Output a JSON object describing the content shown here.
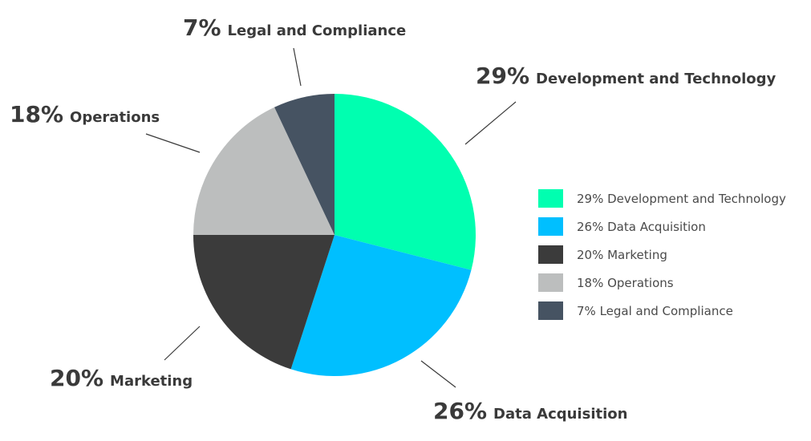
{
  "chart_data": {
    "type": "pie",
    "slices": [
      {
        "label": "Development and Technology",
        "value": 29,
        "pct_text": "29%",
        "legend_text": "29% Development and Technology",
        "color": "#00FFB0"
      },
      {
        "label": "Data Acquisition",
        "value": 26,
        "pct_text": "26%",
        "legend_text": "26% Data Acquisition",
        "color": "#00BFFF"
      },
      {
        "label": "Marketing",
        "value": 20,
        "pct_text": "20%",
        "legend_text": "20% Marketing",
        "color": "#3B3B3B"
      },
      {
        "label": "Operations",
        "value": 18,
        "pct_text": "18%",
        "legend_text": "18% Operations",
        "color": "#BCBEBE"
      },
      {
        "label": "Legal and Compliance",
        "value": 7,
        "pct_text": "7%",
        "legend_text": "7% Legal and Compliance",
        "color": "#465362"
      }
    ],
    "start_angle": "12 o'clock",
    "direction": "clockwise",
    "legend_position": "right"
  }
}
